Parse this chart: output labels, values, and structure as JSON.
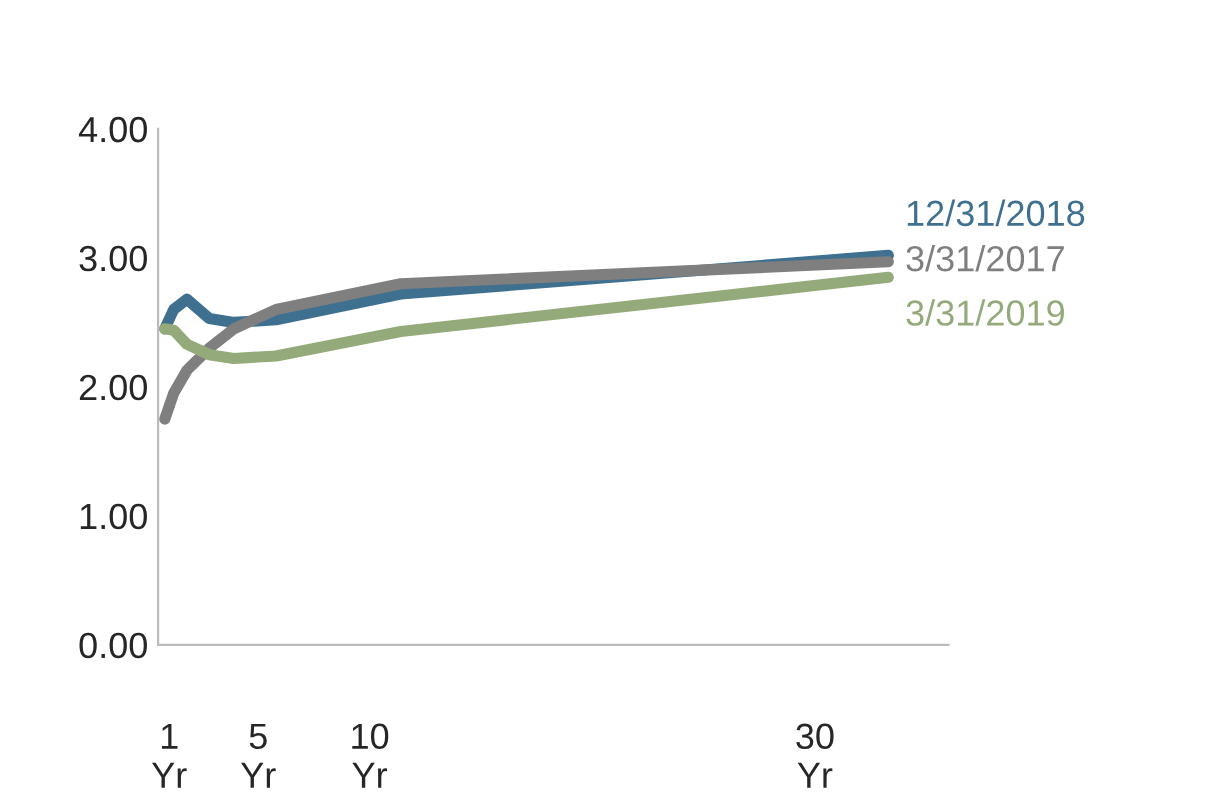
{
  "chart_data": {
    "type": "line",
    "x": [
      0.8,
      1.2,
      1.8,
      2.8,
      3.9,
      5.8,
      11.4,
      33.3
    ],
    "series": [
      {
        "name": "12/31/2018",
        "color": "#3f7090",
        "values": [
          2.45,
          2.6,
          2.68,
          2.53,
          2.5,
          2.52,
          2.72,
          3.02
        ]
      },
      {
        "name": "3/31/2017",
        "color": "#7f7f7f",
        "values": [
          1.75,
          1.95,
          2.13,
          2.3,
          2.45,
          2.6,
          2.8,
          2.97
        ]
      },
      {
        "name": "3/31/2019",
        "color": "#94aa7a",
        "values": [
          2.45,
          2.44,
          2.33,
          2.25,
          2.22,
          2.24,
          2.43,
          2.85
        ]
      }
    ],
    "xlim": [
      0.5,
      36
    ],
    "ylim": [
      0,
      4
    ],
    "xticks": [
      {
        "value": 1,
        "label": "1\nYr"
      },
      {
        "value": 5,
        "label": "5\nYr"
      },
      {
        "value": 10,
        "label": "10\nYr"
      },
      {
        "value": 30,
        "label": "30\nYr"
      }
    ],
    "yticks": [
      {
        "value": 0,
        "label": "0.00"
      },
      {
        "value": 1,
        "label": "1.00"
      },
      {
        "value": 2,
        "label": "2.00"
      },
      {
        "value": 3,
        "label": "3.00"
      },
      {
        "value": 4,
        "label": "4.00"
      }
    ],
    "grid": false,
    "legend": false,
    "marker": "none",
    "line_style": "solid"
  }
}
